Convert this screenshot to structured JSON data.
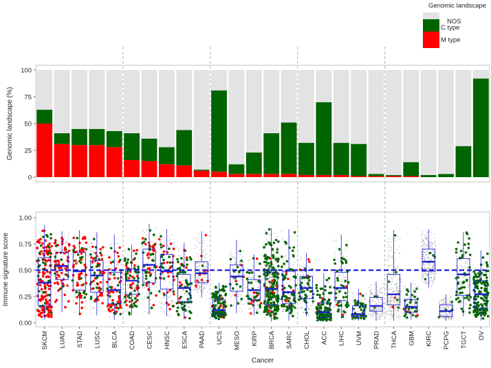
{
  "chart_data": [
    {
      "type": "bar",
      "stacked": true,
      "title": "",
      "xlabel": "",
      "ylabel": "Genomic landscape (%)",
      "ylim": [
        0,
        100
      ],
      "yticks": [
        "0",
        "25",
        "50",
        "75",
        "100"
      ],
      "categories": [
        "SKCM",
        "LUAD",
        "STAD",
        "LUSC",
        "BLCA",
        "COAD",
        "CESC",
        "HNSC",
        "ESCA",
        "PAAD",
        "UCS",
        "MESO",
        "KIRP",
        "BRCA",
        "SARC",
        "CHOL",
        "ACC",
        "LIHC",
        "UVM",
        "PRAD",
        "THCA",
        "GBM",
        "KIRC",
        "PCPG",
        "TGCT",
        "OV"
      ],
      "series": [
        {
          "name": "M type",
          "values": [
            50,
            31,
            30,
            30,
            28,
            16,
            15,
            12,
            11,
            6,
            5,
            3,
            3,
            3,
            3,
            2,
            2,
            2,
            1,
            1,
            1,
            1,
            0,
            0,
            0,
            0
          ]
        },
        {
          "name": "C type",
          "values": [
            13,
            10,
            15,
            15,
            15,
            25,
            21,
            16,
            33,
            1,
            76,
            9,
            20,
            38,
            48,
            30,
            68,
            30,
            30,
            2,
            1,
            13,
            2,
            3,
            29,
            92
          ]
        },
        {
          "name": "NOS",
          "values": [
            37,
            59,
            55,
            55,
            57,
            59,
            64,
            72,
            56,
            93,
            19,
            88,
            77,
            59,
            49,
            68,
            30,
            68,
            69,
            97,
            98,
            86,
            98,
            97,
            71,
            8
          ]
        }
      ],
      "legend": {
        "title": "Genomic landscape",
        "position": "top-right",
        "entries": [
          "NOS",
          "C type",
          "M type"
        ]
      },
      "group_dividers_after": [
        "BLCA",
        "PAAD",
        "SARC",
        "PRAD"
      ]
    },
    {
      "type": "box",
      "title": "",
      "xlabel": "Cancer",
      "ylabel": "Immune signature score",
      "ylim": [
        0,
        1
      ],
      "yticks": [
        "0.00",
        "0.25",
        "0.50",
        "0.75",
        "1.00"
      ],
      "reference_line": 0.5,
      "categories": [
        "SKCM",
        "LUAD",
        "STAD",
        "LUSC",
        "BLCA",
        "COAD",
        "CESC",
        "HNSC",
        "ESCA",
        "PAAD",
        "UCS",
        "MESO",
        "KIRP",
        "BRCA",
        "SARC",
        "CHOL",
        "ACC",
        "LIHC",
        "UVM",
        "PRAD",
        "THCA",
        "GBM",
        "KIRC",
        "PCPG",
        "TGCT",
        "OV"
      ],
      "boxes": [
        {
          "q1": 0.16,
          "median": 0.38,
          "q3": 0.62,
          "min": 0.03,
          "max": 0.93
        },
        {
          "q1": 0.41,
          "median": 0.54,
          "q3": 0.67,
          "min": 0.1,
          "max": 0.87
        },
        {
          "q1": 0.31,
          "median": 0.49,
          "q3": 0.67,
          "min": 0.07,
          "max": 0.88
        },
        {
          "q1": 0.29,
          "median": 0.45,
          "q3": 0.59,
          "min": 0.07,
          "max": 0.86
        },
        {
          "q1": 0.18,
          "median": 0.31,
          "q3": 0.48,
          "min": 0.03,
          "max": 0.84
        },
        {
          "q1": 0.27,
          "median": 0.4,
          "q3": 0.51,
          "min": 0.07,
          "max": 0.74
        },
        {
          "q1": 0.38,
          "median": 0.55,
          "q3": 0.7,
          "min": 0.08,
          "max": 0.94
        },
        {
          "q1": 0.32,
          "median": 0.49,
          "q3": 0.65,
          "min": 0.06,
          "max": 0.89
        },
        {
          "q1": 0.2,
          "median": 0.33,
          "q3": 0.46,
          "min": 0.03,
          "max": 0.76
        },
        {
          "q1": 0.38,
          "median": 0.47,
          "q3": 0.58,
          "min": 0.24,
          "max": 0.87
        },
        {
          "q1": 0.08,
          "median": 0.12,
          "q3": 0.22,
          "min": 0.03,
          "max": 0.38
        },
        {
          "q1": 0.3,
          "median": 0.44,
          "q3": 0.55,
          "min": 0.09,
          "max": 0.79
        },
        {
          "q1": 0.22,
          "median": 0.31,
          "q3": 0.41,
          "min": 0.07,
          "max": 0.65
        },
        {
          "q1": 0.17,
          "median": 0.32,
          "q3": 0.48,
          "min": 0.01,
          "max": 0.9
        },
        {
          "q1": 0.18,
          "median": 0.29,
          "q3": 0.49,
          "min": 0.02,
          "max": 0.89
        },
        {
          "q1": 0.23,
          "median": 0.33,
          "q3": 0.44,
          "min": 0.06,
          "max": 0.66
        },
        {
          "q1": 0.05,
          "median": 0.1,
          "q3": 0.19,
          "min": 0.01,
          "max": 0.47
        },
        {
          "q1": 0.21,
          "median": 0.33,
          "q3": 0.48,
          "min": 0.04,
          "max": 0.84
        },
        {
          "q1": 0.06,
          "median": 0.08,
          "q3": 0.16,
          "min": 0.02,
          "max": 0.32
        },
        {
          "q1": 0.11,
          "median": 0.16,
          "q3": 0.24,
          "min": 0.02,
          "max": 0.39
        },
        {
          "q1": 0.17,
          "median": 0.27,
          "q3": 0.46,
          "min": 0.02,
          "max": 0.88
        },
        {
          "q1": 0.1,
          "median": 0.15,
          "q3": 0.22,
          "min": 0.03,
          "max": 0.38
        },
        {
          "q1": 0.49,
          "median": 0.58,
          "q3": 0.7,
          "min": 0.33,
          "max": 0.89
        },
        {
          "q1": 0.06,
          "median": 0.11,
          "q3": 0.17,
          "min": 0.02,
          "max": 0.27
        },
        {
          "q1": 0.26,
          "median": 0.46,
          "q3": 0.61,
          "min": 0.06,
          "max": 0.86
        },
        {
          "q1": 0.14,
          "median": 0.27,
          "q3": 0.4,
          "min": 0.02,
          "max": 0.69
        }
      ],
      "point_colors": {
        "M type": "#ff0000",
        "C type": "#006400",
        "NOS": "#9a9a9a"
      }
    }
  ],
  "colors": {
    "nos": "#e3e3e3",
    "c_type": "#006400",
    "m_type": "#ff0000",
    "box": "#2020d0",
    "reference": "#1a1ad8"
  }
}
